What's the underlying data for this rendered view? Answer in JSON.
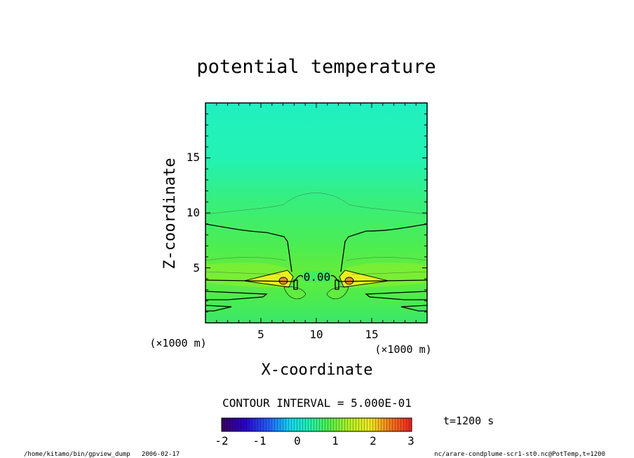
{
  "chart_data": {
    "type": "heatmap",
    "title": "potential temperature",
    "xlabel": "X-coordinate",
    "ylabel": "Z-coordinate",
    "x_unit": "(×1000 m)",
    "y_unit": "(×1000 m)",
    "xlim": [
      0,
      20
    ],
    "ylim": [
      0,
      20
    ],
    "x_ticks": [
      "5",
      "10",
      "15"
    ],
    "y_ticks": [
      "5",
      "10",
      "15"
    ],
    "contour_label": "0.00",
    "contour_interval_text": "CONTOUR INTERVAL = 5.000E-01",
    "time_text": "t=1200 s",
    "colorbar": {
      "min": -2,
      "max": 3,
      "ticks": [
        "-2",
        "-1",
        "0",
        "1",
        "2",
        "3"
      ]
    },
    "footer_left": "/home/kitamo/bin/gpview_dump   2006-02-17",
    "footer_right": "nc/arare-condplume-scr1-st0.nc@PotTemp,t=1200"
  }
}
